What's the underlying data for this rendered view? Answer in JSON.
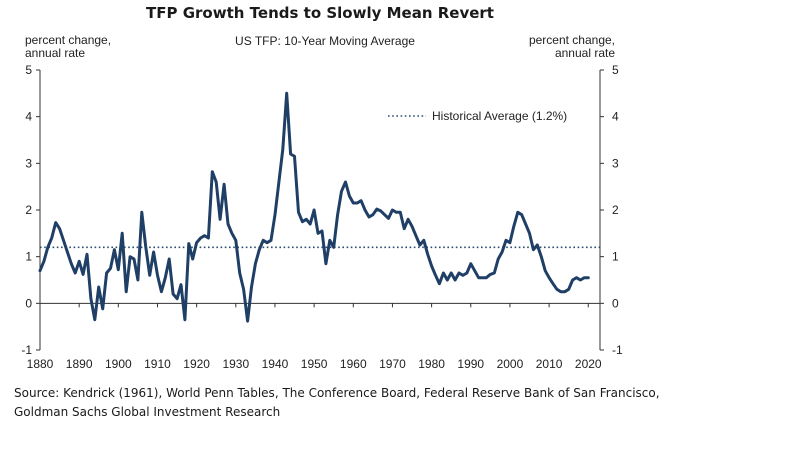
{
  "header": {
    "title": "TFP Growth Tends to Slowly Mean Revert",
    "subtitle": "US TFP: 10-Year Moving Average",
    "left_unit_line1": "percent change,",
    "left_unit_line2": "annual rate",
    "right_unit_line1": "percent change,",
    "right_unit_line2": "annual rate"
  },
  "footer": {
    "source_line1": "Source: Kendrick (1961), World Penn Tables, The Conference Board, Federal Reserve Bank of San Francisco,",
    "source_line2": "Goldman Sachs Global Investment Research"
  },
  "colors": {
    "series": "#1f3f66",
    "axis": "#333333",
    "average": "#2a4a73"
  },
  "chart_data": {
    "type": "line",
    "xlim": [
      1880,
      2023
    ],
    "ylim": [
      -1,
      5
    ],
    "x_ticks": [
      1880,
      1890,
      1900,
      1910,
      1920,
      1930,
      1940,
      1950,
      1960,
      1970,
      1980,
      1990,
      2000,
      2010,
      2020
    ],
    "y_ticks": [
      -1,
      0,
      1,
      2,
      3,
      4,
      5
    ],
    "grid": false,
    "legend": {
      "position": "top-right",
      "label": "Historical Average (1.2%)"
    },
    "reference_line": {
      "label": "Historical Average (1.2%)",
      "value": 1.2,
      "style": "dotted"
    },
    "series": [
      {
        "x": [
          1880,
          1881,
          1882,
          1883,
          1884,
          1885,
          1886,
          1887,
          1888,
          1889,
          1890,
          1891,
          1892,
          1893,
          1894,
          1895,
          1896,
          1897,
          1898,
          1899,
          1900,
          1901,
          1902,
          1903,
          1904,
          1905,
          1906,
          1907,
          1908,
          1909,
          1910,
          1911,
          1912,
          1913,
          1914,
          1915,
          1916,
          1917,
          1918,
          1919,
          1920,
          1921,
          1922,
          1923,
          1924,
          1925,
          1926,
          1927,
          1928,
          1929,
          1930,
          1931,
          1932,
          1933,
          1934,
          1935,
          1936,
          1937,
          1938,
          1939,
          1940,
          1941,
          1942,
          1943,
          1944,
          1945,
          1946,
          1947,
          1948,
          1949,
          1950,
          1951,
          1952,
          1953,
          1954,
          1955,
          1956,
          1957,
          1958,
          1959,
          1960,
          1961,
          1962,
          1963,
          1964,
          1965,
          1966,
          1967,
          1968,
          1969,
          1970,
          1971,
          1972,
          1973,
          1974,
          1975,
          1976,
          1977,
          1978,
          1979,
          1980,
          1981,
          1982,
          1983,
          1984,
          1985,
          1986,
          1987,
          1988,
          1989,
          1990,
          1991,
          1992,
          1993,
          1994,
          1995,
          1996,
          1997,
          1998,
          1999,
          2000,
          2001,
          2002,
          2003,
          2004,
          2005,
          2006,
          2007,
          2008,
          2009,
          2010,
          2011,
          2012,
          2013,
          2014,
          2015,
          2016,
          2017,
          2018,
          2019,
          2020
        ],
        "y": [
          0.7,
          0.9,
          1.2,
          1.4,
          1.73,
          1.6,
          1.35,
          1.1,
          0.85,
          0.65,
          0.9,
          0.62,
          1.05,
          0.1,
          -0.35,
          0.35,
          -0.12,
          0.65,
          0.75,
          1.15,
          0.72,
          1.5,
          0.25,
          1.0,
          0.95,
          0.5,
          1.95,
          1.22,
          0.6,
          1.1,
          0.6,
          0.25,
          0.55,
          0.95,
          0.2,
          0.1,
          0.4,
          -0.35,
          1.28,
          0.95,
          1.3,
          1.4,
          1.45,
          1.4,
          2.82,
          2.6,
          1.8,
          2.55,
          1.7,
          1.5,
          1.35,
          0.65,
          0.3,
          -0.38,
          0.35,
          0.85,
          1.15,
          1.35,
          1.3,
          1.35,
          1.9,
          2.6,
          3.3,
          4.5,
          3.2,
          3.15,
          1.95,
          1.75,
          1.8,
          1.7,
          2.0,
          1.5,
          1.55,
          0.85,
          1.35,
          1.2,
          1.9,
          2.4,
          2.6,
          2.3,
          2.15,
          2.15,
          2.2,
          2.0,
          1.85,
          1.9,
          2.02,
          1.98,
          1.9,
          1.82,
          2.0,
          1.95,
          1.95,
          1.6,
          1.8,
          1.65,
          1.45,
          1.25,
          1.35,
          1.05,
          0.8,
          0.6,
          0.42,
          0.65,
          0.5,
          0.65,
          0.5,
          0.65,
          0.6,
          0.65,
          0.85,
          0.7,
          0.55,
          0.55,
          0.55,
          0.62,
          0.65,
          0.95,
          1.1,
          1.35,
          1.3,
          1.65,
          1.95,
          1.9,
          1.7,
          1.5,
          1.15,
          1.25,
          1.0,
          0.7,
          0.55,
          0.42,
          0.3,
          0.25,
          0.25,
          0.3,
          0.5,
          0.55,
          0.5,
          0.55,
          0.55
        ]
      }
    ]
  }
}
